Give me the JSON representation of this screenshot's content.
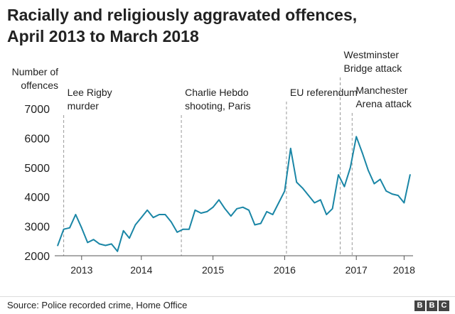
{
  "title": {
    "line1": "Racially and religiously aggravated offences,",
    "line2": "April 2013 to March 2018"
  },
  "source": "Source: Police recorded crime, Home Office",
  "logo": [
    "B",
    "B",
    "C"
  ],
  "colors": {
    "line": "#1a86a6",
    "text": "#222222",
    "event_line": "#999999",
    "axis": "#555555"
  },
  "chart_data": {
    "type": "line",
    "title": "Racially and religiously aggravated offences, April 2013 to March 2018",
    "ylabel_lines": [
      "Number of",
      "offences"
    ],
    "xlabel": "",
    "ylim": [
      2000,
      7000
    ],
    "yticks": [
      2000,
      3000,
      4000,
      5000,
      6000,
      7000
    ],
    "ytick_labels": [
      "2000",
      "3000",
      "4000",
      "5000",
      "6000",
      "7000"
    ],
    "grid": false,
    "xrange_months": [
      0,
      60
    ],
    "xticks": [
      {
        "label": "2013",
        "month": 4.5
      },
      {
        "label": "2014",
        "month": 14.5
      },
      {
        "label": "2015",
        "month": 26.5
      },
      {
        "label": "2016",
        "month": 38.5
      },
      {
        "label": "2017",
        "month": 50.5
      },
      {
        "label": "2018",
        "month": 58.5
      }
    ],
    "series": [
      {
        "name": "Racially and religiously aggravated offences",
        "x_start": "April 2013",
        "values": [
          2350,
          2900,
          2950,
          3400,
          2950,
          2450,
          2550,
          2400,
          2350,
          2400,
          2150,
          2850,
          2600,
          3050,
          3300,
          3550,
          3300,
          3400,
          3400,
          3150,
          2800,
          2900,
          2900,
          3550,
          3450,
          3500,
          3650,
          3900,
          3600,
          3350,
          3600,
          3650,
          3550,
          3050,
          3100,
          3500,
          3400,
          3800,
          4200,
          5650,
          4500,
          4300,
          4050,
          3800,
          3900,
          3400,
          3600,
          4750,
          4350,
          5000,
          6050,
          5500,
          4900,
          4450,
          4600,
          4200,
          4100,
          4050,
          3800,
          4750
        ]
      }
    ],
    "annotations": [
      {
        "lines": [
          "Lee Rigby",
          "murder"
        ],
        "month": 1.5
      },
      {
        "lines": [
          "Charlie Hebdo",
          "shooting, Paris"
        ],
        "month": 21.2
      },
      {
        "lines": [
          "EU referendum"
        ],
        "month": 38.8
      },
      {
        "lines": [
          "Westminster",
          "Bridge attack"
        ],
        "month": 47.8
      },
      {
        "lines": [
          "Manchester",
          "Arena attack"
        ],
        "month": 49.8
      }
    ]
  }
}
